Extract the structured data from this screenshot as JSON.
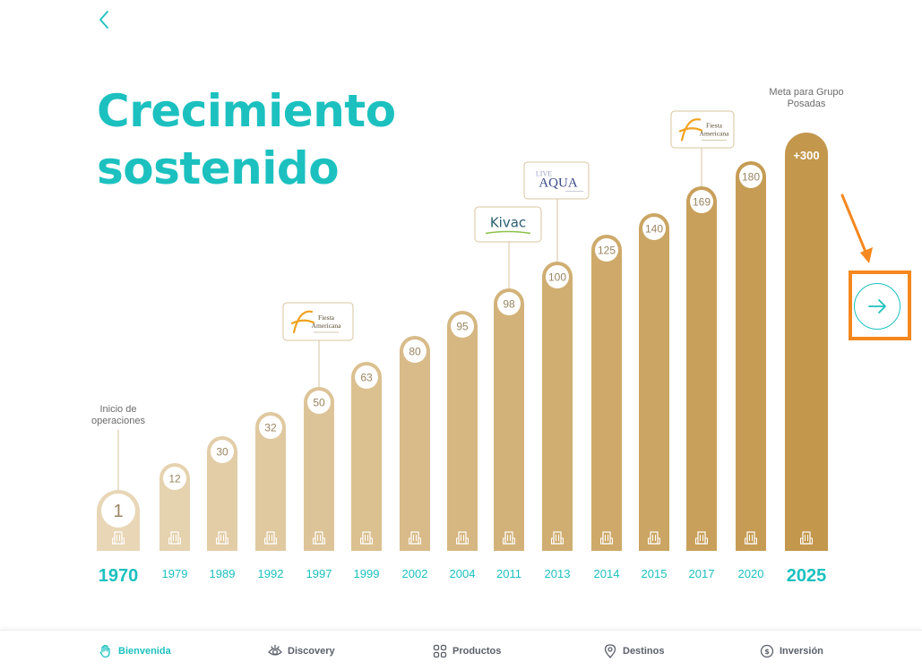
{
  "title_line1": "Crecimiento",
  "title_line2": "sostenido",
  "chart_data": {
    "type": "bar",
    "categories": [
      "1970",
      "1979",
      "1989",
      "1992",
      "1997",
      "1999",
      "2002",
      "2004",
      "2011",
      "2013",
      "2014",
      "2015",
      "2017",
      "2020",
      "2025"
    ],
    "values": [
      1,
      12,
      30,
      32,
      50,
      63,
      80,
      95,
      98,
      100,
      125,
      140,
      169,
      180,
      300
    ],
    "value_labels": [
      "1",
      "12",
      "30",
      "32",
      "50",
      "63",
      "80",
      "95",
      "98",
      "100",
      "125",
      "140",
      "169",
      "180",
      "+300"
    ],
    "annotations": [
      {
        "category": "1970",
        "text": "Inicio de operaciones"
      },
      {
        "category": "2025",
        "text": "Meta para Grupo Posadas"
      }
    ],
    "brand_badges": [
      {
        "category": "1997",
        "brand": "Fiesta Americana",
        "icon": "fiesta-americana-logo"
      },
      {
        "category": "2011",
        "brand": "Kivac",
        "icon": "kivac-logo"
      },
      {
        "category": "2013",
        "brand": "Live Aqua",
        "icon": "live-aqua-logo"
      },
      {
        "category": "2017",
        "brand": "Fiesta Americana",
        "icon": "fiesta-americana-logo"
      }
    ],
    "bar_icon": "hotel-building-icon",
    "colors": {
      "bar_start": "#e8d6b6",
      "bar_end": "#c3974c",
      "axis_label": "#1cc1bf",
      "highlight": "#f5871f"
    }
  },
  "nav": {
    "items": [
      {
        "label": "Bienvenida",
        "icon": "hand-wave-icon",
        "active": true
      },
      {
        "label": "Discovery",
        "icon": "eye-icon",
        "active": false
      },
      {
        "label": "Productos",
        "icon": "grid-icon",
        "active": false
      },
      {
        "label": "Destinos",
        "icon": "map-pin-icon",
        "active": false
      },
      {
        "label": "Inversión",
        "icon": "dollar-coin-icon",
        "active": false
      }
    ]
  },
  "icons": {
    "back": "chevron-left-icon",
    "next": "arrow-right-icon"
  }
}
